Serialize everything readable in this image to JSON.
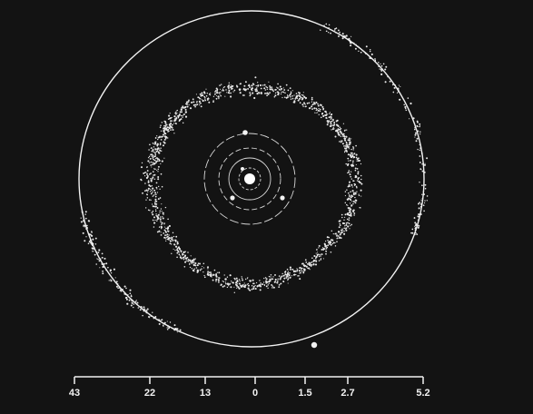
{
  "scale_bar": {
    "ticks": [
      "43",
      "22",
      "13",
      "0",
      "1.5",
      "2.7",
      "5.2"
    ]
  },
  "colors": {
    "background": "#131313",
    "foreground": "#f2f2f2"
  }
}
